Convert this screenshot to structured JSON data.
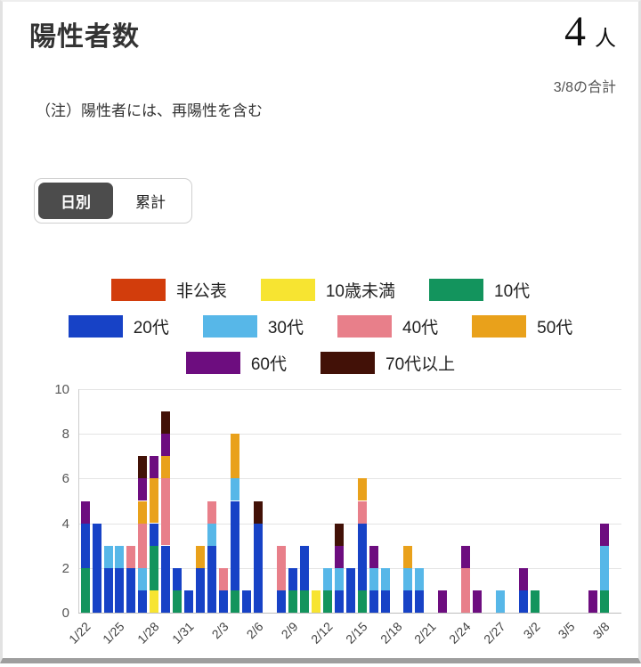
{
  "header": {
    "title": "陽性者数",
    "count": "4",
    "count_unit": "人",
    "count_caption": "3/8の合計",
    "note": "（注）陽性者には、再陽性を含む"
  },
  "tabs": {
    "daily": "日別",
    "cumulative": "累計"
  },
  "chart_data": {
    "type": "bar",
    "stacked": true,
    "title": "",
    "xlabel": "",
    "ylabel": "",
    "ylim": [
      0,
      10
    ],
    "yticks": [
      0,
      2,
      4,
      6,
      8,
      10
    ],
    "grid": true,
    "legend_position": "top",
    "legend_rows": [
      3,
      4,
      2
    ],
    "x_label_every": 3,
    "categories": [
      "1/22",
      "1/23",
      "1/24",
      "1/25",
      "1/26",
      "1/27",
      "1/28",
      "1/29",
      "1/30",
      "1/31",
      "2/1",
      "2/2",
      "2/3",
      "2/4",
      "2/5",
      "2/6",
      "2/7",
      "2/8",
      "2/9",
      "2/10",
      "2/11",
      "2/12",
      "2/13",
      "2/14",
      "2/15",
      "2/16",
      "2/17",
      "2/18",
      "2/19",
      "2/20",
      "2/21",
      "2/22",
      "2/23",
      "2/24",
      "2/25",
      "2/26",
      "2/27",
      "2/28",
      "3/1",
      "3/2",
      "3/3",
      "3/4",
      "3/5",
      "3/6",
      "3/7",
      "3/8"
    ],
    "visible_x_labels": [
      "1/22",
      "1/25",
      "1/28",
      "1/31",
      "2/3",
      "2/6",
      "2/9",
      "2/12",
      "2/15",
      "2/18",
      "2/21",
      "2/24",
      "2/27",
      "3/2",
      "3/5",
      "3/8"
    ],
    "series": [
      {
        "name": "非公表",
        "color": "#d23d0c",
        "values": [
          0,
          0,
          0,
          0,
          0,
          0,
          0,
          0,
          0,
          0,
          0,
          0,
          0,
          0,
          0,
          0,
          0,
          0,
          0,
          0,
          0,
          0,
          0,
          0,
          0,
          0,
          0,
          0,
          0,
          0,
          0,
          0,
          0,
          0,
          0,
          0,
          0,
          0,
          0,
          0,
          0,
          0,
          0,
          0,
          0,
          0
        ]
      },
      {
        "name": "10歳未満",
        "color": "#f7e431",
        "values": [
          0,
          0,
          0,
          0,
          0,
          0,
          1,
          0,
          0,
          0,
          0,
          0,
          0,
          0,
          0,
          0,
          0,
          0,
          0,
          0,
          1,
          0,
          0,
          0,
          0,
          0,
          0,
          0,
          0,
          0,
          0,
          0,
          0,
          0,
          0,
          0,
          0,
          0,
          0,
          0,
          0,
          0,
          0,
          0,
          0,
          0
        ]
      },
      {
        "name": "10代",
        "color": "#13945d",
        "values": [
          2,
          0,
          0,
          0,
          0,
          0,
          2,
          0,
          1,
          0,
          0,
          0,
          0,
          1,
          0,
          0,
          0,
          0,
          1,
          1,
          0,
          1,
          0,
          0,
          1,
          0,
          0,
          0,
          0,
          0,
          0,
          0,
          0,
          0,
          0,
          0,
          0,
          0,
          0,
          1,
          0,
          0,
          0,
          0,
          0,
          1
        ]
      },
      {
        "name": "20代",
        "color": "#1742c6",
        "values": [
          2,
          4,
          2,
          2,
          2,
          1,
          1,
          3,
          1,
          1,
          2,
          3,
          1,
          4,
          1,
          4,
          0,
          1,
          1,
          2,
          0,
          0,
          1,
          2,
          3,
          1,
          1,
          0,
          1,
          1,
          0,
          0,
          0,
          0,
          0,
          0,
          0,
          0,
          1,
          0,
          0,
          0,
          0,
          0,
          0,
          0
        ]
      },
      {
        "name": "30代",
        "color": "#57b7e8",
        "values": [
          0,
          0,
          1,
          1,
          0,
          1,
          0,
          0,
          0,
          0,
          0,
          1,
          0,
          1,
          0,
          0,
          0,
          0,
          0,
          0,
          0,
          1,
          1,
          0,
          0,
          1,
          1,
          0,
          1,
          1,
          0,
          0,
          0,
          0,
          0,
          0,
          1,
          0,
          0,
          0,
          0,
          0,
          0,
          0,
          0,
          2
        ]
      },
      {
        "name": "40代",
        "color": "#e87f8a",
        "values": [
          0,
          0,
          0,
          0,
          1,
          2,
          0,
          3,
          0,
          0,
          0,
          1,
          1,
          0,
          0,
          0,
          0,
          2,
          0,
          0,
          0,
          0,
          0,
          0,
          1,
          0,
          0,
          0,
          0,
          0,
          0,
          0,
          0,
          2,
          0,
          0,
          0,
          0,
          0,
          0,
          0,
          0,
          0,
          0,
          0,
          0
        ]
      },
      {
        "name": "50代",
        "color": "#e9a11b",
        "values": [
          0,
          0,
          0,
          0,
          0,
          1,
          2,
          1,
          0,
          0,
          1,
          0,
          0,
          2,
          0,
          0,
          0,
          0,
          0,
          0,
          0,
          0,
          0,
          0,
          1,
          0,
          0,
          0,
          1,
          0,
          0,
          0,
          0,
          0,
          0,
          0,
          0,
          0,
          0,
          0,
          0,
          0,
          0,
          0,
          0,
          0
        ]
      },
      {
        "name": "60代",
        "color": "#6d0d7f",
        "values": [
          1,
          0,
          0,
          0,
          0,
          1,
          1,
          1,
          0,
          0,
          0,
          0,
          0,
          0,
          0,
          0,
          0,
          0,
          0,
          0,
          0,
          0,
          1,
          0,
          0,
          1,
          0,
          0,
          0,
          0,
          0,
          1,
          0,
          1,
          1,
          0,
          0,
          0,
          1,
          0,
          0,
          0,
          0,
          0,
          1,
          1
        ]
      },
      {
        "name": "70代以上",
        "color": "#421107",
        "values": [
          0,
          0,
          0,
          0,
          0,
          1,
          0,
          1,
          0,
          0,
          0,
          0,
          0,
          0,
          0,
          1,
          0,
          0,
          0,
          0,
          0,
          0,
          1,
          0,
          0,
          0,
          0,
          0,
          0,
          0,
          0,
          0,
          0,
          0,
          0,
          0,
          0,
          0,
          0,
          0,
          0,
          0,
          0,
          0,
          0,
          0
        ]
      }
    ]
  }
}
